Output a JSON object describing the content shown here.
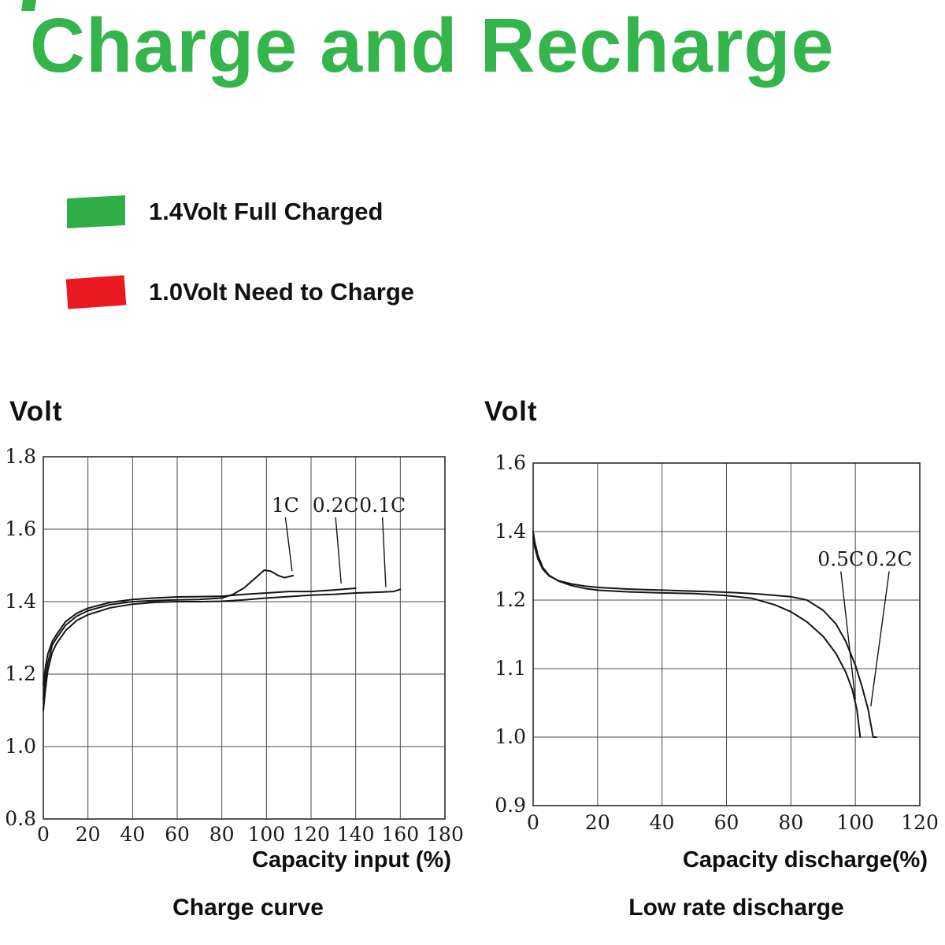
{
  "page": {
    "title": "Charge and Recharge",
    "colors": {
      "title_green": "#33b54c",
      "legend_green": "#2fae47",
      "legend_red": "#ea1821",
      "grid": "#4a4a4a",
      "curve": "#151515"
    }
  },
  "legend": {
    "items": [
      {
        "label": "1.4Volt Full Charged",
        "color": "#2fae47"
      },
      {
        "label": "1.0Volt Need to Charge",
        "color": "#ea1821"
      }
    ]
  },
  "chart_data": [
    {
      "type": "line",
      "title": "Charge curve",
      "ylabel": "Volt",
      "xlabel": "Capacity input (%)",
      "x_ticks": [
        0,
        20,
        40,
        60,
        80,
        100,
        120,
        140,
        160,
        180
      ],
      "y_ticks": [
        1.8,
        1.6,
        1.4,
        1.2,
        1.0,
        0.8
      ],
      "xlim": [
        0,
        180
      ],
      "ylim": [
        0.8,
        1.8
      ],
      "grid": true,
      "grid_color": "#4a4a4a",
      "line_color": "#151515",
      "legend_position": "none",
      "series": [
        {
          "name": "1C",
          "points": [
            [
              0,
              1.13
            ],
            [
              1,
              1.19
            ],
            [
              2,
              1.23
            ],
            [
              4,
              1.28
            ],
            [
              6,
              1.3
            ],
            [
              10,
              1.335
            ],
            [
              15,
              1.36
            ],
            [
              20,
              1.375
            ],
            [
              30,
              1.392
            ],
            [
              40,
              1.4
            ],
            [
              50,
              1.403
            ],
            [
              60,
              1.405
            ],
            [
              70,
              1.406
            ],
            [
              80,
              1.41
            ],
            [
              85,
              1.42
            ],
            [
              90,
              1.438
            ],
            [
              95,
              1.465
            ],
            [
              99,
              1.487
            ],
            [
              102,
              1.484
            ],
            [
              105,
              1.473
            ],
            [
              108,
              1.466
            ],
            [
              112,
              1.472
            ]
          ]
        },
        {
          "name": "0.2C",
          "points": [
            [
              0,
              1.17
            ],
            [
              1,
              1.22
            ],
            [
              2,
              1.255
            ],
            [
              4,
              1.29
            ],
            [
              6,
              1.31
            ],
            [
              10,
              1.345
            ],
            [
              15,
              1.368
            ],
            [
              20,
              1.382
            ],
            [
              30,
              1.398
            ],
            [
              40,
              1.406
            ],
            [
              50,
              1.41
            ],
            [
              60,
              1.413
            ],
            [
              70,
              1.414
            ],
            [
              80,
              1.415
            ],
            [
              90,
              1.42
            ],
            [
              100,
              1.424
            ],
            [
              110,
              1.428
            ],
            [
              120,
              1.428
            ],
            [
              130,
              1.432
            ],
            [
              140,
              1.437
            ]
          ]
        },
        {
          "name": "0.1C",
          "points": [
            [
              0,
              1.1
            ],
            [
              1,
              1.16
            ],
            [
              2,
              1.21
            ],
            [
              4,
              1.26
            ],
            [
              6,
              1.285
            ],
            [
              10,
              1.32
            ],
            [
              15,
              1.348
            ],
            [
              20,
              1.364
            ],
            [
              30,
              1.383
            ],
            [
              40,
              1.393
            ],
            [
              50,
              1.398
            ],
            [
              60,
              1.4
            ],
            [
              70,
              1.4
            ],
            [
              80,
              1.401
            ],
            [
              90,
              1.405
            ],
            [
              100,
              1.41
            ],
            [
              110,
              1.414
            ],
            [
              120,
              1.418
            ],
            [
              130,
              1.42
            ],
            [
              140,
              1.424
            ],
            [
              150,
              1.426
            ],
            [
              157,
              1.428
            ],
            [
              160,
              1.434
            ]
          ]
        }
      ],
      "annotations": [
        {
          "text": "1C",
          "x": 108.5,
          "y": 1.648,
          "tx": 111.5,
          "ty": 1.485
        },
        {
          "text": "0.2C",
          "x": 131,
          "y": 1.648,
          "tx": 133.5,
          "ty": 1.45
        },
        {
          "text": "0.1C",
          "x": 152,
          "y": 1.648,
          "tx": 153.5,
          "ty": 1.44
        }
      ]
    },
    {
      "type": "line",
      "title": "Low rate discharge",
      "ylabel": "Volt",
      "xlabel": "Capacity discharge(%)",
      "x_ticks": [
        0,
        20,
        40,
        60,
        80,
        100,
        120
      ],
      "y_ticks": [
        1.6,
        1.4,
        1.2,
        1.1,
        1.0,
        0.9
      ],
      "xlim": [
        0,
        120
      ],
      "ylim": [
        0.9,
        1.6
      ],
      "grid": true,
      "grid_color": "#4a4a4a",
      "line_color": "#151515",
      "legend_position": "none",
      "series": [
        {
          "name": "0.5C",
          "points": [
            [
              0,
              1.4
            ],
            [
              0.5,
              1.37
            ],
            [
              1.5,
              1.33
            ],
            [
              3,
              1.295
            ],
            [
              5,
              1.272
            ],
            [
              8,
              1.255
            ],
            [
              12,
              1.242
            ],
            [
              16,
              1.234
            ],
            [
              20,
              1.229
            ],
            [
              30,
              1.224
            ],
            [
              40,
              1.221
            ],
            [
              50,
              1.219
            ],
            [
              60,
              1.213
            ],
            [
              68,
              1.205
            ],
            [
              75,
              1.193
            ],
            [
              80,
              1.183
            ],
            [
              85,
              1.168
            ],
            [
              90,
              1.147
            ],
            [
              94,
              1.122
            ],
            [
              97,
              1.095
            ],
            [
              99,
              1.07
            ],
            [
              100.5,
              1.04
            ],
            [
              101.5,
              1.0
            ]
          ]
        },
        {
          "name": "0.2C",
          "points": [
            [
              0,
              1.385
            ],
            [
              0.5,
              1.355
            ],
            [
              1.5,
              1.32
            ],
            [
              3,
              1.29
            ],
            [
              5,
              1.27
            ],
            [
              8,
              1.256
            ],
            [
              12,
              1.247
            ],
            [
              16,
              1.241
            ],
            [
              20,
              1.237
            ],
            [
              30,
              1.232
            ],
            [
              40,
              1.229
            ],
            [
              50,
              1.226
            ],
            [
              60,
              1.223
            ],
            [
              70,
              1.218
            ],
            [
              80,
              1.21
            ],
            [
              85,
              1.2
            ],
            [
              90,
              1.185
            ],
            [
              94,
              1.165
            ],
            [
              97,
              1.14
            ],
            [
              100,
              1.105
            ],
            [
              102,
              1.075
            ],
            [
              104,
              1.04
            ],
            [
              105.5,
              1.0
            ],
            [
              106.5,
              1.0
            ]
          ]
        }
      ],
      "annotations": [
        {
          "text": "0.5C",
          "x": 95.5,
          "y": 1.3,
          "tx": 100,
          "ty": 1.055
        },
        {
          "text": "0.2C",
          "x": 110.5,
          "y": 1.3,
          "tx": 104.8,
          "ty": 1.045
        }
      ]
    }
  ]
}
